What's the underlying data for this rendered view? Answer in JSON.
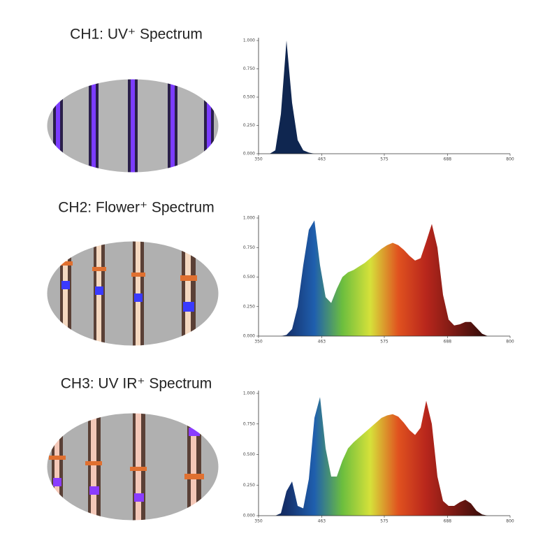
{
  "chart_data": [
    {
      "type": "area",
      "title": "CH1: UV⁺ Spectrum",
      "color": "#0f2650",
      "x": [
        350,
        360,
        370,
        380,
        390,
        400,
        410,
        420,
        430,
        440,
        450,
        460,
        470,
        480,
        490,
        500,
        510,
        520,
        530,
        540,
        550,
        560,
        570,
        580,
        590,
        600,
        610,
        620,
        630,
        640,
        650,
        660,
        670,
        680,
        690,
        700,
        710,
        720,
        730,
        740,
        750,
        760,
        770,
        780,
        790,
        800
      ],
      "values": [
        0,
        0,
        0,
        0.03,
        0.35,
        1.0,
        0.45,
        0.12,
        0.03,
        0.01,
        0,
        0,
        0,
        0,
        0,
        0,
        0,
        0,
        0,
        0,
        0,
        0,
        0,
        0,
        0,
        0,
        0,
        0,
        0,
        0,
        0,
        0,
        0,
        0,
        0,
        0,
        0,
        0,
        0,
        0,
        0,
        0,
        0,
        0,
        0,
        0
      ],
      "xlim": [
        350,
        800
      ],
      "xticks": [
        350,
        463,
        575,
        688,
        800
      ],
      "ylim": [
        0,
        1
      ],
      "yticks": [
        {
          "value": 0,
          "label": "0.000"
        },
        {
          "value": 0.25,
          "label": "0.250"
        },
        {
          "value": 0.5,
          "label": "0.500"
        },
        {
          "value": 0.75,
          "label": "0.750"
        },
        {
          "value": 1,
          "label": "1.000"
        }
      ]
    },
    {
      "type": "area",
      "title": "CH2: Flower⁺ Spectrum",
      "colors": [
        "#0c1b3d",
        "#15306b",
        "#1f5fae",
        "#6cbe3e",
        "#d6e13a",
        "#e0521f",
        "#b8261c",
        "#7a1a14",
        "#3a0d0a",
        "#1a0505"
      ],
      "x": [
        350,
        360,
        370,
        380,
        390,
        400,
        410,
        420,
        430,
        440,
        450,
        460,
        470,
        480,
        490,
        500,
        510,
        520,
        530,
        540,
        550,
        560,
        570,
        580,
        590,
        600,
        610,
        620,
        630,
        640,
        650,
        660,
        670,
        680,
        690,
        700,
        710,
        720,
        730,
        740,
        750,
        760,
        770,
        780,
        790,
        800
      ],
      "values": [
        0,
        0,
        0,
        0,
        0,
        0.01,
        0.06,
        0.25,
        0.6,
        0.9,
        0.98,
        0.6,
        0.33,
        0.28,
        0.4,
        0.5,
        0.54,
        0.56,
        0.59,
        0.62,
        0.66,
        0.7,
        0.74,
        0.77,
        0.79,
        0.77,
        0.73,
        0.68,
        0.64,
        0.66,
        0.8,
        0.95,
        0.75,
        0.35,
        0.14,
        0.09,
        0.1,
        0.12,
        0.12,
        0.07,
        0.02,
        0,
        0,
        0,
        0,
        0
      ],
      "xlim": [
        350,
        800
      ],
      "xticks": [
        350,
        463,
        575,
        688,
        800
      ],
      "ylim": [
        0,
        1
      ],
      "yticks": [
        {
          "value": 0,
          "label": "0.000"
        },
        {
          "value": 0.25,
          "label": "0.250"
        },
        {
          "value": 0.5,
          "label": "0.500"
        },
        {
          "value": 0.75,
          "label": "0.750"
        },
        {
          "value": 1,
          "label": "1.000"
        }
      ]
    },
    {
      "type": "area",
      "title": "CH3: UV IR⁺ Spectrum",
      "colors": [
        "#0c1b3d",
        "#15306b",
        "#1f5fae",
        "#6cbe3e",
        "#d6e13a",
        "#e0521f",
        "#b8261c",
        "#7a1a14",
        "#3a0d0a",
        "#1a0505"
      ],
      "x": [
        350,
        360,
        370,
        380,
        390,
        400,
        410,
        420,
        430,
        440,
        450,
        460,
        470,
        480,
        490,
        500,
        510,
        520,
        530,
        540,
        550,
        560,
        570,
        580,
        590,
        600,
        610,
        620,
        630,
        640,
        650,
        660,
        670,
        680,
        690,
        700,
        710,
        720,
        730,
        740,
        750,
        760,
        770,
        780,
        790,
        800
      ],
      "values": [
        0,
        0,
        0,
        0,
        0.02,
        0.2,
        0.28,
        0.08,
        0.06,
        0.3,
        0.8,
        0.97,
        0.55,
        0.32,
        0.32,
        0.45,
        0.55,
        0.6,
        0.64,
        0.68,
        0.72,
        0.76,
        0.8,
        0.82,
        0.83,
        0.81,
        0.76,
        0.7,
        0.66,
        0.72,
        0.94,
        0.75,
        0.32,
        0.12,
        0.08,
        0.08,
        0.11,
        0.13,
        0.1,
        0.04,
        0.01,
        0,
        0,
        0,
        0,
        0
      ],
      "xlim": [
        350,
        800
      ],
      "xticks": [
        350,
        463,
        575,
        688,
        800
      ],
      "ylim": [
        0,
        1
      ],
      "yticks": [
        {
          "value": 0,
          "label": "0.000"
        },
        {
          "value": 0.25,
          "label": "0.250"
        },
        {
          "value": 0.5,
          "label": "0.500"
        },
        {
          "value": 0.75,
          "label": "0.750"
        },
        {
          "value": 1,
          "label": "1.000"
        }
      ]
    }
  ]
}
